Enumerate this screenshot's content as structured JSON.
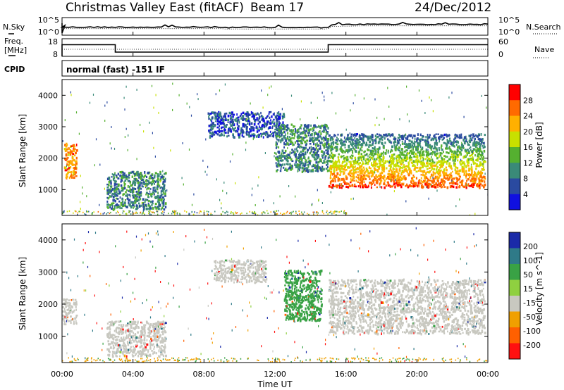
{
  "header": {
    "title": "Christmas Valley East (fitACF)",
    "beam": "Beam 17",
    "date": "24/Dec/2012"
  },
  "noise_panel": {
    "left_label": "N.Sky",
    "right_label": "N.Search",
    "ticks_left": [
      "10^5",
      "10^0"
    ],
    "ticks_right": [
      "10^5",
      "10^0"
    ]
  },
  "freq_panel": {
    "left_label_1": "Freq.",
    "left_label_2": "[MHz]",
    "right_label": "Nave",
    "ticks_left": [
      "18",
      "8"
    ],
    "ticks_right": [
      "60",
      "0"
    ],
    "freq_steps": [
      {
        "from_hour": 0.0,
        "to_hour": 3.0,
        "mhz": 14.6
      },
      {
        "from_hour": 3.0,
        "to_hour": 15.0,
        "mhz": 10.4
      },
      {
        "from_hour": 15.0,
        "to_hour": 24.0,
        "mhz": 14.6
      }
    ]
  },
  "cpid_panel": {
    "label": "CPID",
    "text": "normal (fast) -151 IF"
  },
  "x_axis": {
    "label": "Time UT",
    "ticks": [
      "00:00",
      "04:00",
      "08:00",
      "12:00",
      "16:00",
      "20:00",
      "00:00"
    ],
    "range_hours": [
      0,
      24
    ]
  },
  "chart_data": [
    {
      "type": "heatmap",
      "name": "power",
      "ylabel": "Slant Range [km]",
      "yticks": [
        "4000",
        "3000",
        "2000",
        "1000"
      ],
      "ylim": [
        180,
        4500
      ],
      "colorbar_label": "Power [dB]",
      "colorbar_ticks": [
        "28",
        "24",
        "20",
        "16",
        "12",
        "8",
        "4"
      ],
      "colorbar_colors": [
        "#ff0000",
        "#ff6a00",
        "#ffb000",
        "#c8e000",
        "#55b030",
        "#3a8a78",
        "#2a4aa0",
        "#1010e0"
      ],
      "features": [
        {
          "t0": 0.1,
          "t1": 0.8,
          "r0": 1400,
          "r1": 2500,
          "level": 24
        },
        {
          "t0": 2.5,
          "t1": 5.8,
          "r0": 400,
          "r1": 1600,
          "level": 10
        },
        {
          "t0": 8.2,
          "t1": 12.5,
          "r0": 2700,
          "r1": 3500,
          "level": 6
        },
        {
          "t0": 12.0,
          "t1": 15.0,
          "r0": 1600,
          "r1": 3100,
          "level": 10
        },
        {
          "t0": 15.0,
          "t1": 23.8,
          "r0": 1100,
          "r1": 2800,
          "level": 24
        }
      ]
    },
    {
      "type": "heatmap",
      "name": "velocity",
      "ylabel": "Slant Range [km]",
      "yticks": [
        "4000",
        "3000",
        "2000",
        "1000"
      ],
      "ylim": [
        180,
        4500
      ],
      "colorbar_label": "Velocity [m s^-1]",
      "colorbar_ticks": [
        "200",
        "100",
        "50",
        "15",
        "-15",
        "-50",
        "-100",
        "-200"
      ],
      "colorbar_colors": [
        "#1a2aa8",
        "#2f7a88",
        "#39a245",
        "#8fd040",
        "#c8c8c0",
        "#f0a000",
        "#ff6000",
        "#ff1010"
      ],
      "features": [
        {
          "t0": 0.0,
          "t1": 0.8,
          "r0": 1400,
          "r1": 2200,
          "value": 0
        },
        {
          "t0": 2.5,
          "t1": 5.8,
          "r0": 400,
          "r1": 1500,
          "value": 0
        },
        {
          "t0": 8.5,
          "t1": 11.5,
          "r0": 2700,
          "r1": 3400,
          "value": 0
        },
        {
          "t0": 12.5,
          "t1": 14.6,
          "r0": 1500,
          "r1": 3100,
          "value": 40
        },
        {
          "t0": 15.0,
          "t1": 23.8,
          "r0": 1100,
          "r1": 2800,
          "value": 0
        }
      ]
    }
  ]
}
